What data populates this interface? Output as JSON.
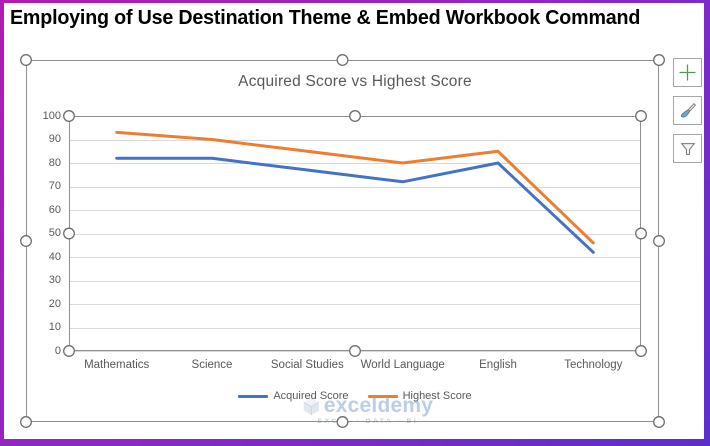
{
  "header": {
    "title": "Employing of Use Destination Theme & Embed Workbook Command"
  },
  "chart_data": {
    "type": "line",
    "title": "Acquired Score vs Highest Score",
    "categories": [
      "Mathematics",
      "Science",
      "Social Studies",
      "World Language",
      "English",
      "Technology"
    ],
    "series": [
      {
        "name": "Acquired Score",
        "color": "#4472C4",
        "values": [
          82,
          82,
          77,
          72,
          80,
          42
        ]
      },
      {
        "name": "Highest Score",
        "color": "#ED7D31",
        "values": [
          93,
          90,
          85,
          80,
          85,
          46
        ]
      }
    ],
    "xlabel": "",
    "ylabel": "",
    "ylim": [
      0,
      100
    ],
    "ytick_step": 10,
    "grid": true,
    "legend_position": "bottom"
  },
  "side_buttons": {
    "icons": [
      "plus-icon",
      "paintbrush-icon",
      "funnel-icon"
    ]
  },
  "watermark": {
    "brand": "exceldemy",
    "tagline": "EXCEL · DATA · BI",
    "icon": "cube-icon"
  },
  "colors": {
    "border_gradient_start": "#B21BB0",
    "border_gradient_end": "#5B2ED0",
    "gridline": "#D9D9D9",
    "axis_text": "#595959",
    "selection_frame": "#8F8F8F"
  }
}
